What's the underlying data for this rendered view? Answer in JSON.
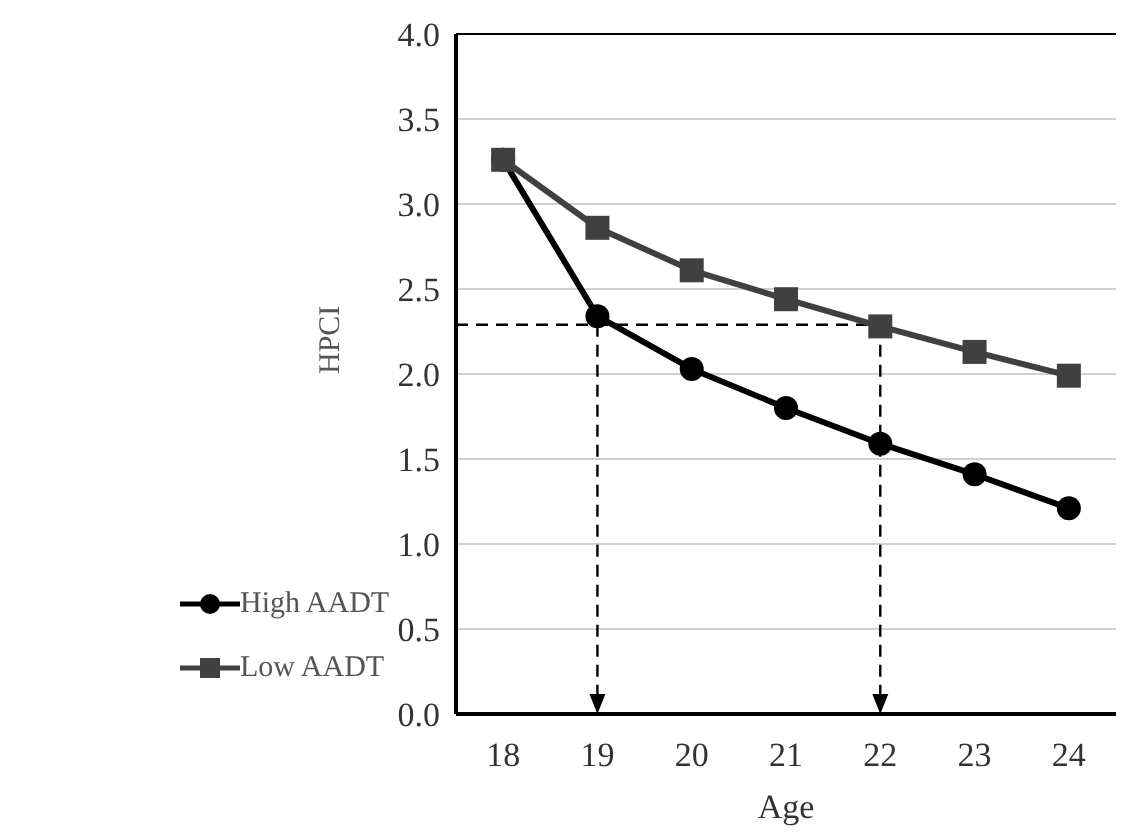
{
  "chart_data": {
    "type": "line",
    "xlabel": "Age",
    "ylabel": "HPCI",
    "x": [
      18,
      19,
      20,
      21,
      22,
      23,
      24
    ],
    "series": [
      {
        "name": "High AADT",
        "color": "#000000",
        "marker": "circle",
        "values": [
          3.26,
          2.34,
          2.03,
          1.8,
          1.59,
          1.41,
          1.21
        ]
      },
      {
        "name": "Low AADT",
        "color": "#404040",
        "marker": "square",
        "values": [
          3.26,
          2.86,
          2.61,
          2.44,
          2.28,
          2.13,
          1.99
        ]
      }
    ],
    "xlim": [
      17.5,
      24.5
    ],
    "xticks": [
      18,
      19,
      20,
      21,
      22,
      23,
      24
    ],
    "ylim": [
      0,
      4
    ],
    "yticks": [
      {
        "value": 0,
        "label": "0.0"
      },
      {
        "value": 0.5,
        "label": "0.5"
      },
      {
        "value": 1,
        "label": "1.0"
      },
      {
        "value": 1.5,
        "label": "1.5"
      },
      {
        "value": 2,
        "label": "2.0"
      },
      {
        "value": 2.5,
        "label": "2.5"
      },
      {
        "value": 3,
        "label": "3.0"
      },
      {
        "value": 3.5,
        "label": "3.5"
      },
      {
        "value": 4,
        "label": "4.0"
      }
    ],
    "ref_lines": [
      {
        "axis": "y",
        "value": 2.29,
        "color": "#000000",
        "line_style": "dashed"
      },
      {
        "axis": "x",
        "value": 19,
        "color": "#000000",
        "line_style": "dashed"
      },
      {
        "axis": "x",
        "value": 22,
        "color": "#000000",
        "line_style": "dashed"
      }
    ],
    "grid": "y",
    "legend": "bottom left",
    "line_style": "solid"
  }
}
